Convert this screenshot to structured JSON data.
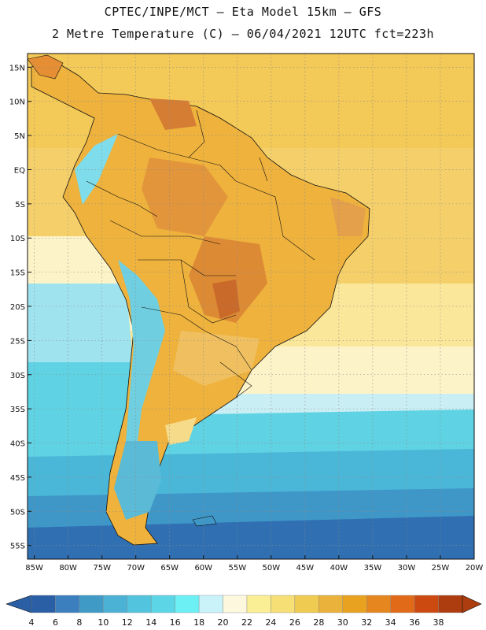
{
  "header": {
    "line1": "CPTEC/INPE/MCT –  Eta Model 15km – GFS",
    "line2": "2 Metre Temperature (C) – 06/04/2021 12UTC fct=223h"
  },
  "axes": {
    "lat_labels": [
      "15N",
      "10N",
      "5N",
      "EQ",
      "5S",
      "10S",
      "15S",
      "20S",
      "25S",
      "30S",
      "35S",
      "40S",
      "45S",
      "50S",
      "55S"
    ],
    "lon_labels": [
      "85W",
      "80W",
      "75W",
      "70W",
      "65W",
      "60W",
      "55W",
      "50W",
      "45W",
      "40W",
      "35W",
      "30W",
      "25W",
      "20W"
    ]
  },
  "colorbar": {
    "labels": [
      "4",
      "6",
      "8",
      "10",
      "12",
      "14",
      "16",
      "18",
      "20",
      "22",
      "24",
      "26",
      "28",
      "30",
      "32",
      "34",
      "36",
      "38"
    ],
    "colors": [
      "#2a5fa6",
      "#3c7fbe",
      "#3f9ac6",
      "#4bb2d6",
      "#52c4dd",
      "#5cd6e6",
      "#6df0f4",
      "#c9f3f8",
      "#fdf7de",
      "#fbef95",
      "#f6df74",
      "#f0cb52",
      "#eab23a",
      "#e8a220",
      "#e5861f",
      "#e06a18",
      "#cc4a10",
      "#ad3d0e"
    ],
    "low_end_color": "#2a5fa6",
    "high_end_color": "#ad3d0e"
  },
  "map": {
    "ocean_color": "#f2d27c",
    "cold_ocean_color": "#3e9cc9",
    "land_warm_color": "#e8a43a",
    "land_hot_color": "#d98a2e"
  }
}
